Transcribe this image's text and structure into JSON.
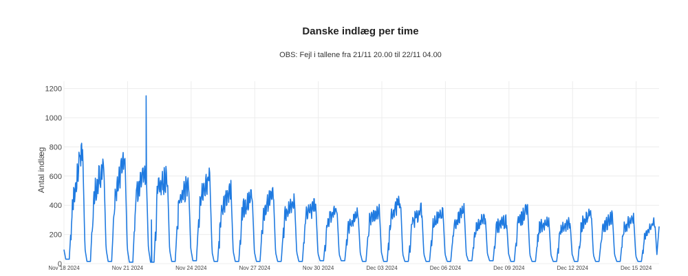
{
  "chart_data": {
    "type": "line",
    "title": "Danske indlæg per time",
    "subtitle": "OBS: Fejl i tallene fra 21/11 20.00 til 22/11 04.00",
    "xlabel": "",
    "ylabel": "Antal indlæg",
    "ylim": [
      0,
      1250
    ],
    "yticks": [
      0,
      200,
      400,
      600,
      800,
      1000,
      1200
    ],
    "x_range": [
      "2024-11-18",
      "2024-12-16T02:00"
    ],
    "xticks": [
      "Nov 18 2024",
      "Nov 21 2024",
      "Nov 24 2024",
      "Nov 27 2024",
      "Nov 30 2024",
      "Dec 03 2024",
      "Dec 06 2024",
      "Dec 09 2024",
      "Dec 12 2024",
      "Dec 15 2024"
    ],
    "grid": true,
    "line_color": "#1f7ae0",
    "daily": [
      {
        "date": "2024-11-18",
        "min": 30,
        "peak": 830,
        "midday": 470
      },
      {
        "date": "2024-11-19",
        "min": 15,
        "peak": 700,
        "midday": 540
      },
      {
        "date": "2024-11-20",
        "min": 15,
        "peak": 750,
        "midday": 520
      },
      {
        "date": "2024-11-21",
        "min": 10,
        "peak": 670,
        "midday": 560
      },
      {
        "date": "2024-11-22",
        "min": 10,
        "peak": 640,
        "midday": 560
      },
      {
        "date": "2024-11-23",
        "min": 15,
        "peak": 580,
        "midday": 470
      },
      {
        "date": "2024-11-24",
        "min": 20,
        "peak": 630,
        "midday": 480
      },
      {
        "date": "2024-11-25",
        "min": 15,
        "peak": 540,
        "midday": 380
      },
      {
        "date": "2024-11-26",
        "min": 15,
        "peak": 500,
        "midday": 400
      },
      {
        "date": "2024-11-27",
        "min": 15,
        "peak": 520,
        "midday": 380
      },
      {
        "date": "2024-11-28",
        "min": 15,
        "peak": 450,
        "midday": 360
      },
      {
        "date": "2024-11-29",
        "min": 15,
        "peak": 430,
        "midday": 360
      },
      {
        "date": "2024-11-30",
        "min": 20,
        "peak": 400,
        "midday": 300
      },
      {
        "date": "2024-12-01",
        "min": 20,
        "peak": 360,
        "midday": 270
      },
      {
        "date": "2024-12-02",
        "min": 15,
        "peak": 390,
        "midday": 320
      },
      {
        "date": "2024-12-03",
        "min": 15,
        "peak": 460,
        "midday": 350
      },
      {
        "date": "2024-12-04",
        "min": 15,
        "peak": 390,
        "midday": 300
      },
      {
        "date": "2024-12-05",
        "min": 15,
        "peak": 380,
        "midday": 290
      },
      {
        "date": "2024-12-06",
        "min": 15,
        "peak": 400,
        "midday": 290
      },
      {
        "date": "2024-12-07",
        "min": 20,
        "peak": 340,
        "midday": 260
      },
      {
        "date": "2024-12-08",
        "min": 20,
        "peak": 310,
        "midday": 280
      },
      {
        "date": "2024-12-09",
        "min": 15,
        "peak": 390,
        "midday": 300
      },
      {
        "date": "2024-12-10",
        "min": 15,
        "peak": 310,
        "midday": 270
      },
      {
        "date": "2024-12-11",
        "min": 15,
        "peak": 300,
        "midday": 250
      },
      {
        "date": "2024-12-12",
        "min": 15,
        "peak": 370,
        "midday": 290
      },
      {
        "date": "2024-12-13",
        "min": 15,
        "peak": 340,
        "midday": 260
      },
      {
        "date": "2024-12-14",
        "min": 15,
        "peak": 330,
        "midday": 270
      },
      {
        "date": "2024-12-15",
        "min": 15,
        "peak": 300,
        "midday": 220
      }
    ],
    "annotations": [
      {
        "x": "2024-11-21T21:00",
        "y": 1150
      },
      {
        "x": "2024-11-22T03:00",
        "y": 300
      }
    ],
    "end_value": 255
  }
}
